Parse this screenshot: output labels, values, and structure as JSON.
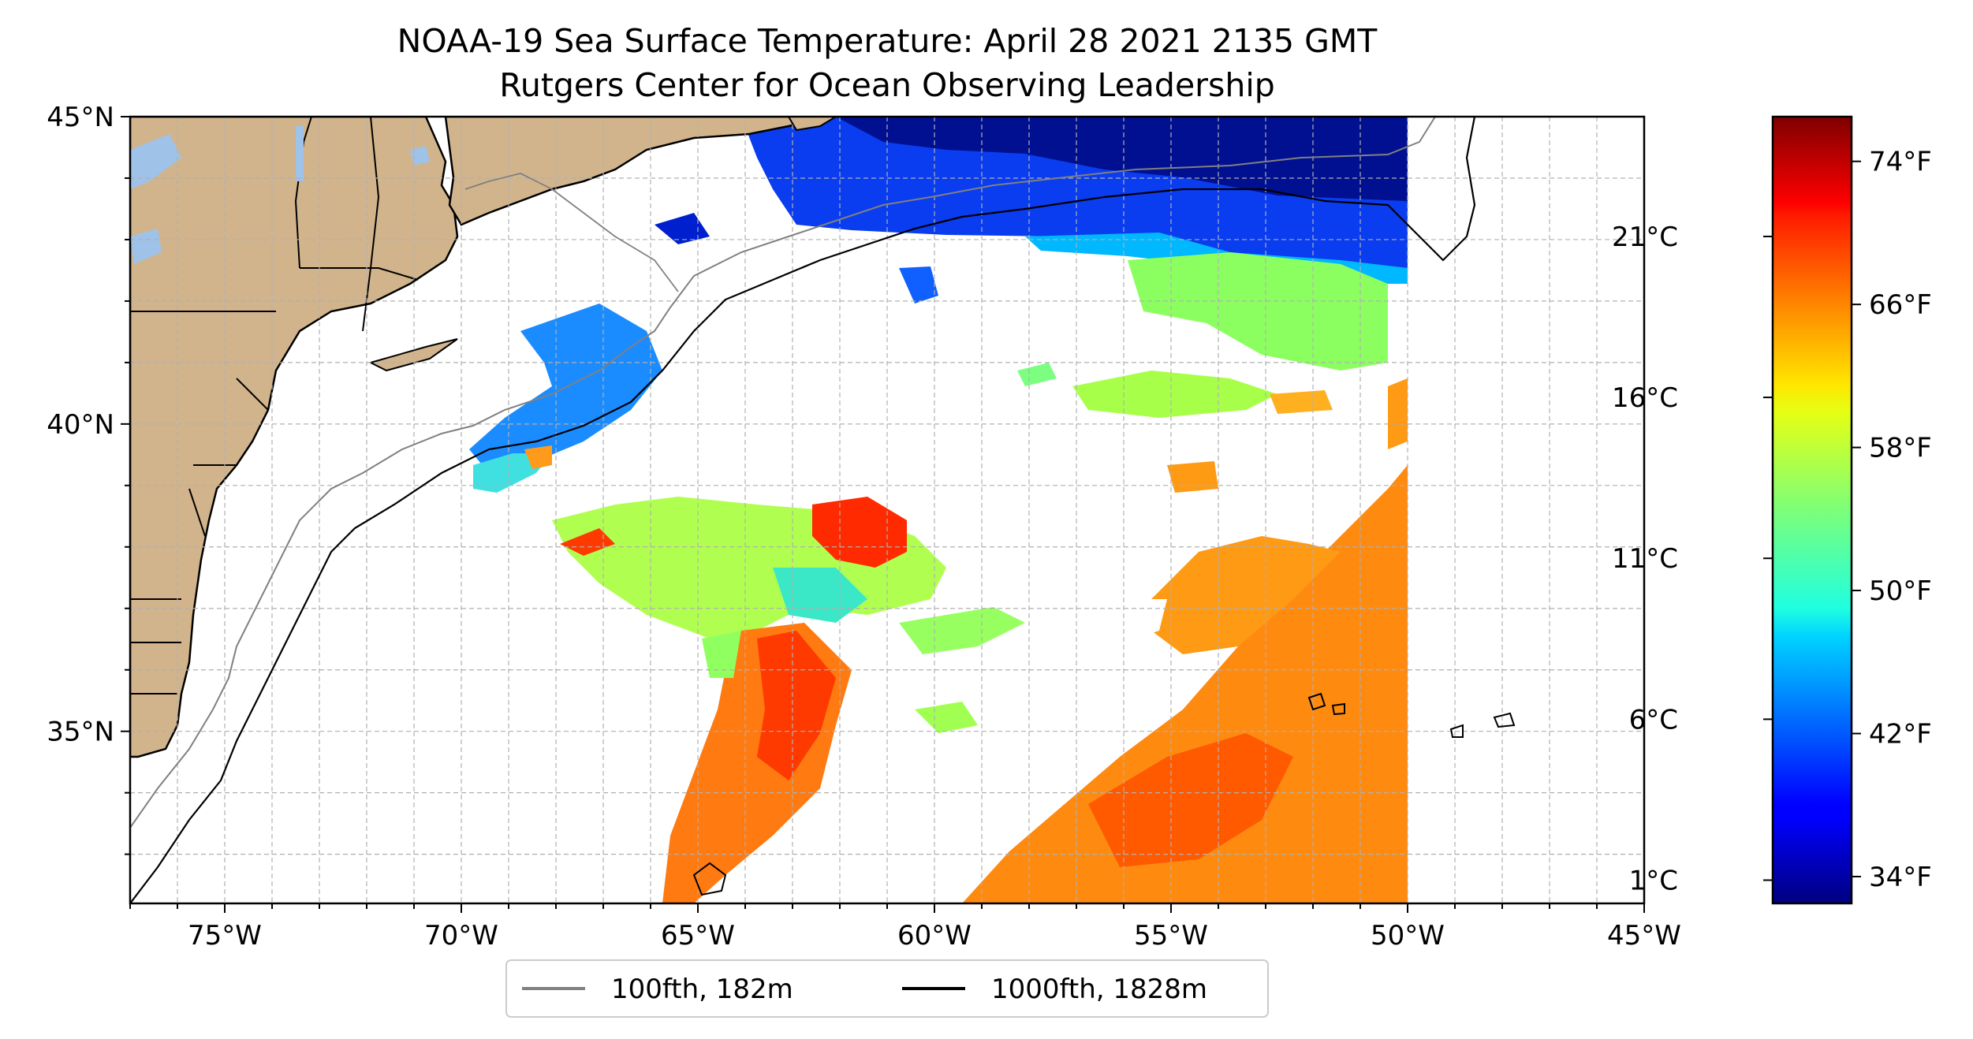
{
  "title": {
    "line1": "NOAA-19 Sea Surface Temperature: April 28 2021 2135 GMT",
    "line2": "Rutgers Center for Ocean Observing Leadership"
  },
  "map": {
    "lon_range": [
      -77,
      -45
    ],
    "lat_range": [
      32.2,
      45
    ],
    "lon_ticks": [
      {
        "value": -75,
        "label": "75°W"
      },
      {
        "value": -70,
        "label": "70°W"
      },
      {
        "value": -65,
        "label": "65°W"
      },
      {
        "value": -60,
        "label": "60°W"
      },
      {
        "value": -55,
        "label": "55°W"
      },
      {
        "value": -50,
        "label": "50°W"
      },
      {
        "value": -45,
        "label": "45°W"
      }
    ],
    "lat_ticks": [
      {
        "value": 35,
        "label": "35°N"
      },
      {
        "value": 40,
        "label": "40°N"
      },
      {
        "value": 45,
        "label": "45°N"
      }
    ],
    "land_color": "#d2b48c",
    "lake_color": "#9ec2e8",
    "gridlines": true
  },
  "colorbar": {
    "colormap": "jet",
    "range_f": [
      32.5,
      76.5
    ],
    "fahrenheit_ticks": [
      {
        "value": 34,
        "label": "34°F"
      },
      {
        "value": 42,
        "label": "42°F"
      },
      {
        "value": 50,
        "label": "50°F"
      },
      {
        "value": 58,
        "label": "58°F"
      },
      {
        "value": 66,
        "label": "66°F"
      },
      {
        "value": 74,
        "label": "74°F"
      }
    ],
    "celsius_ticks": [
      {
        "value": 1,
        "label": "1°C"
      },
      {
        "value": 6,
        "label": "6°C"
      },
      {
        "value": 11,
        "label": "11°C"
      },
      {
        "value": 16,
        "label": "16°C"
      },
      {
        "value": 21,
        "label": "21°C"
      }
    ]
  },
  "legend": {
    "entries": [
      {
        "label": "100fth, 182m",
        "color": "#808080"
      },
      {
        "label": "1000fth, 1828m",
        "color": "#000000"
      }
    ]
  }
}
